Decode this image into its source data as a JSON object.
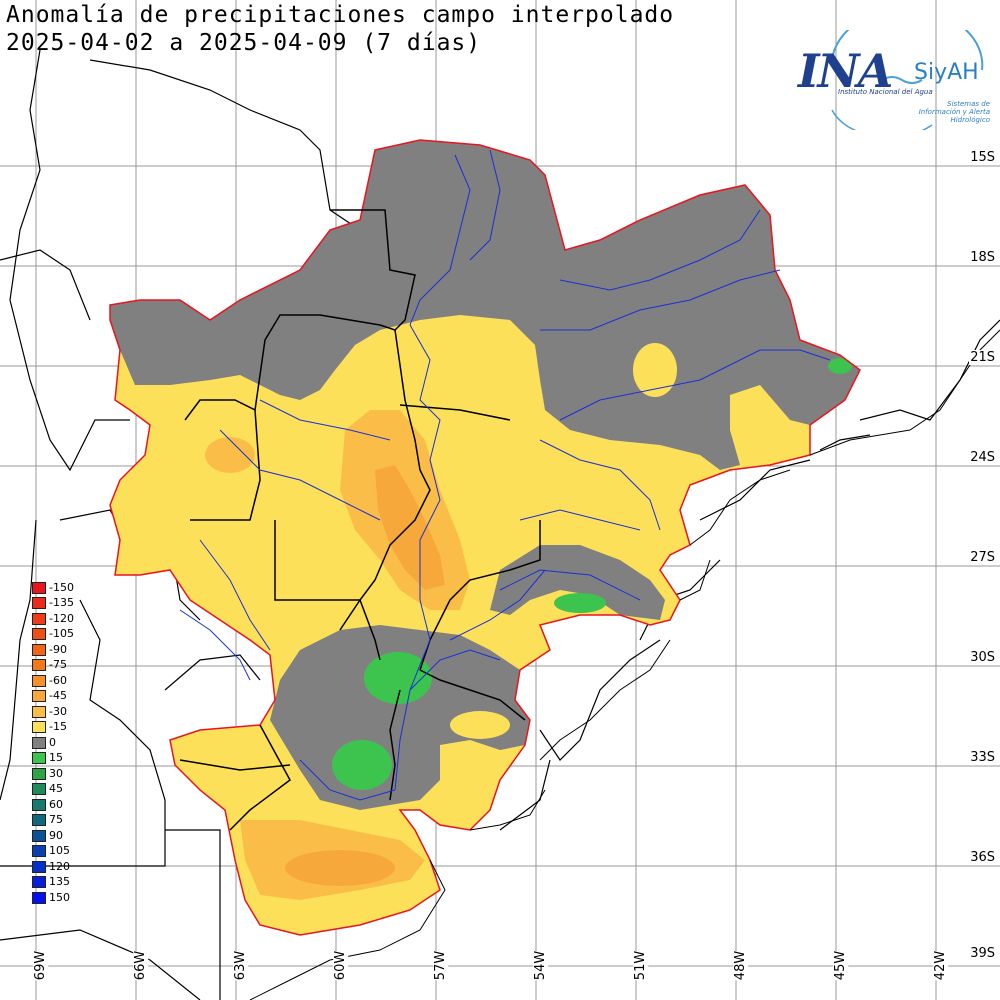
{
  "title": {
    "line1": "Anomalía de precipitaciones campo interpolado",
    "line2": "2025-04-02 a 2025-04-09 (7 días)"
  },
  "logo": {
    "name": "INA",
    "system": "SiyAH",
    "institute": "Instituto Nacional del Agua",
    "subtitle": "Sistemas de Información y Alerta Hidrológico"
  },
  "lat_labels": [
    "15S",
    "18S",
    "21S",
    "24S",
    "27S",
    "30S",
    "33S",
    "36S",
    "39S"
  ],
  "lon_labels": [
    "69W",
    "66W",
    "63W",
    "60W",
    "57W",
    "54W",
    "51W",
    "48W",
    "45W",
    "42W"
  ],
  "legend": [
    {
      "label": "-150",
      "color": "#e8141e"
    },
    {
      "label": "-135",
      "color": "#ea2a1c"
    },
    {
      "label": "-120",
      "color": "#ec3c1a"
    },
    {
      "label": "-105",
      "color": "#ee5018"
    },
    {
      "label": "-90",
      "color": "#f06416"
    },
    {
      "label": "-75",
      "color": "#f27a1c"
    },
    {
      "label": "-60",
      "color": "#f5902a"
    },
    {
      "label": "-45",
      "color": "#f7a83a"
    },
    {
      "label": "-30",
      "color": "#fabe48"
    },
    {
      "label": "-15",
      "color": "#fde05a"
    },
    {
      "label": "0",
      "color": "#808080"
    },
    {
      "label": "15",
      "color": "#3cc44e"
    },
    {
      "label": "30",
      "color": "#2ea444"
    },
    {
      "label": "45",
      "color": "#1f8a5a"
    },
    {
      "label": "60",
      "color": "#177a6c"
    },
    {
      "label": "75",
      "color": "#10687e"
    },
    {
      "label": "90",
      "color": "#0c5098"
    },
    {
      "label": "105",
      "color": "#0a40b0"
    },
    {
      "label": "120",
      "color": "#0830c8"
    },
    {
      "label": "135",
      "color": "#0620dc"
    },
    {
      "label": "150",
      "color": "#0410f0"
    }
  ]
}
